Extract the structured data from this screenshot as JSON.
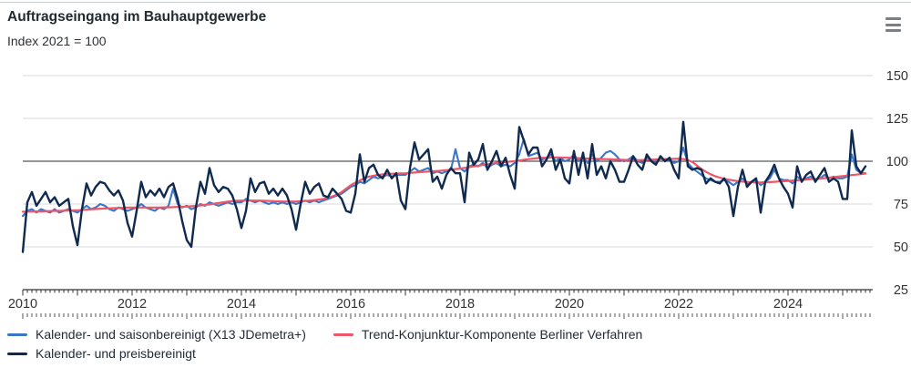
{
  "header": {
    "title": "Auftragseingang im Bauhauptgewerbe",
    "subtitle": "Index 2021 = 100",
    "menu_icon": "hamburger-menu-icon"
  },
  "chart_data": {
    "type": "line",
    "title": "Auftragseingang im Bauhauptgewerbe",
    "subtitle": "Index 2021 = 100",
    "x_start_year": 2010,
    "x_months_per_point": 1,
    "x_axis_months": 187,
    "x_tick_label_years": [
      2010,
      2012,
      2014,
      2016,
      2018,
      2020,
      2022,
      2024
    ],
    "ylim": [
      25,
      150
    ],
    "yticks": [
      25,
      50,
      75,
      100,
      125,
      150
    ],
    "baseline": 100,
    "grid": true,
    "legend_position": "bottom",
    "axis_color": "#333333",
    "grid_color": "#dadada",
    "baseline_color": "#2e2e2e",
    "series": [
      {
        "name": "Kalender- und saisonbereinigt (X13 JDemetra+)",
        "color": "#3a76c8",
        "values": [
          68,
          71,
          72,
          70,
          72,
          71,
          70,
          72,
          70,
          71,
          72,
          71,
          70,
          72,
          74,
          72,
          73,
          75,
          74,
          72,
          71,
          73,
          72,
          71,
          72,
          73,
          75,
          73,
          72,
          71,
          73,
          72,
          74,
          84,
          75,
          73,
          74,
          72,
          73,
          75,
          74,
          76,
          75,
          74,
          75,
          76,
          75,
          76,
          76,
          78,
          77,
          76,
          77,
          76,
          75,
          76,
          75,
          76,
          75,
          76,
          75,
          76,
          77,
          76,
          77,
          76,
          77,
          78,
          79,
          80,
          81,
          83,
          85,
          86,
          88,
          87,
          89,
          91,
          90,
          91,
          92,
          91,
          92,
          92,
          92,
          94,
          96,
          94,
          95,
          96,
          93,
          94,
          93,
          94,
          95,
          107,
          96,
          94,
          97,
          98,
          97,
          99,
          96,
          98,
          99,
          97,
          98,
          97,
          99,
          104,
          113,
          103,
          104,
          105,
          101,
          102,
          104,
          100,
          102,
          100,
          101,
          104,
          100,
          103,
          99,
          104,
          100,
          102,
          105,
          106,
          104,
          101,
          100,
          101,
          103,
          100,
          99,
          102,
          101,
          99,
          102,
          100,
          101,
          99,
          100,
          108,
          99,
          96,
          94,
          92,
          90,
          89,
          88,
          88,
          89,
          88,
          86,
          88,
          90,
          87,
          88,
          89,
          86,
          88,
          90,
          95,
          90,
          89,
          89,
          87,
          91,
          89,
          90,
          91,
          89,
          90,
          92,
          90,
          91,
          90,
          90,
          91,
          104,
          95,
          93,
          93
        ]
      },
      {
        "name": "Trend-Konjunktur-Komponente Berliner Verfahren",
        "color": "#ee5567",
        "values": [
          70.5,
          70.6,
          70.6,
          70.7,
          70.7,
          70.8,
          70.9,
          71.0,
          71.0,
          71.1,
          71.2,
          71.3,
          71.4,
          71.5,
          71.7,
          71.9,
          72.1,
          72.3,
          72.4,
          72.5,
          72.6,
          72.7,
          72.8,
          72.9,
          73.0,
          73.0,
          73.0,
          73.0,
          73.0,
          73.0,
          73.0,
          73.1,
          73.1,
          73.2,
          73.3,
          73.4,
          73.5,
          73.7,
          73.9,
          74.2,
          74.5,
          74.8,
          75.2,
          75.6,
          76.0,
          76.4,
          76.7,
          76.9,
          77.0,
          77.1,
          77.1,
          77.0,
          77.0,
          76.9,
          76.8,
          76.7,
          76.6,
          76.5,
          76.5,
          76.5,
          76.5,
          76.6,
          76.8,
          77.0,
          77.3,
          77.6,
          78.0,
          78.7,
          79.5,
          80.5,
          82.0,
          84.0,
          86.0,
          87.5,
          88.8,
          90.0,
          91.0,
          91.5,
          92.0,
          92.3,
          92.5,
          92.7,
          92.8,
          92.9,
          93.0,
          93.2,
          93.4,
          93.6,
          93.8,
          94.0,
          94.1,
          94.3,
          94.5,
          94.8,
          95.1,
          95.4,
          95.7,
          96.1,
          96.5,
          97.0,
          97.4,
          97.8,
          98.2,
          98.6,
          99.0,
          99.3,
          99.6,
          99.8,
          100.0,
          100.4,
          100.8,
          101.2,
          101.5,
          101.8,
          102.0,
          102.1,
          102.2,
          102.2,
          102.2,
          102.1,
          102.0,
          101.9,
          101.8,
          101.7,
          101.6,
          101.5,
          101.4,
          101.3,
          101.2,
          101.1,
          101.0,
          100.9,
          100.8,
          100.7,
          100.6,
          100.6,
          100.7,
          100.8,
          100.9,
          101.0,
          101.1,
          101.2,
          101.3,
          101.4,
          101.5,
          101.3,
          100.7,
          99.5,
          97.5,
          95.5,
          93.8,
          92.4,
          91.3,
          90.4,
          89.7,
          89.2,
          88.8,
          88.4,
          88.1,
          87.9,
          87.7,
          87.6,
          87.6,
          87.7,
          87.8,
          88.0,
          88.2,
          88.3,
          88.5,
          88.7,
          88.9,
          89.1,
          89.3,
          89.5,
          89.7,
          89.9,
          90.1,
          90.4,
          90.7,
          91.0,
          91.3,
          91.6,
          91.9,
          92.2,
          92.5,
          92.8
        ]
      },
      {
        "name": "Kalender- und preisbereinigt",
        "color": "#0f2a4e",
        "values": [
          47,
          76,
          82,
          74,
          78,
          82,
          76,
          79,
          74,
          76,
          78,
          62,
          51,
          72,
          87,
          80,
          85,
          88,
          87,
          83,
          80,
          83,
          77,
          64,
          56,
          71,
          88,
          79,
          83,
          80,
          84,
          79,
          85,
          87,
          78,
          65,
          54,
          50,
          73,
          88,
          81,
          96,
          86,
          82,
          85,
          84,
          80,
          72,
          61,
          71,
          90,
          82,
          87,
          88,
          81,
          84,
          80,
          84,
          80,
          72,
          60,
          75,
          88,
          81,
          85,
          87,
          80,
          79,
          84,
          81,
          78,
          71,
          70,
          81,
          104,
          88,
          96,
          98,
          92,
          90,
          95,
          90,
          93,
          77,
          72,
          96,
          111,
          101,
          104,
          107,
          88,
          91,
          84,
          92,
          96,
          93,
          93,
          76,
          105,
          98,
          101,
          110,
          95,
          100,
          106,
          97,
          102,
          92,
          84,
          120,
          112,
          104,
          108,
          108,
          97,
          101,
          107,
          95,
          101,
          90,
          87,
          106,
          92,
          105,
          90,
          110,
          92,
          97,
          90,
          100,
          95,
          88,
          88,
          95,
          103,
          98,
          95,
          104,
          100,
          98,
          103,
          100,
          102,
          95,
          90,
          123,
          97,
          95,
          96,
          95,
          87,
          90,
          88,
          87,
          90,
          85,
          68,
          85,
          95,
          85,
          88,
          90,
          70,
          88,
          92,
          98,
          90,
          85,
          81,
          73,
          97,
          88,
          92,
          94,
          88,
          92,
          96,
          88,
          90,
          88,
          78,
          78,
          118,
          97,
          93,
          97
        ]
      }
    ]
  }
}
